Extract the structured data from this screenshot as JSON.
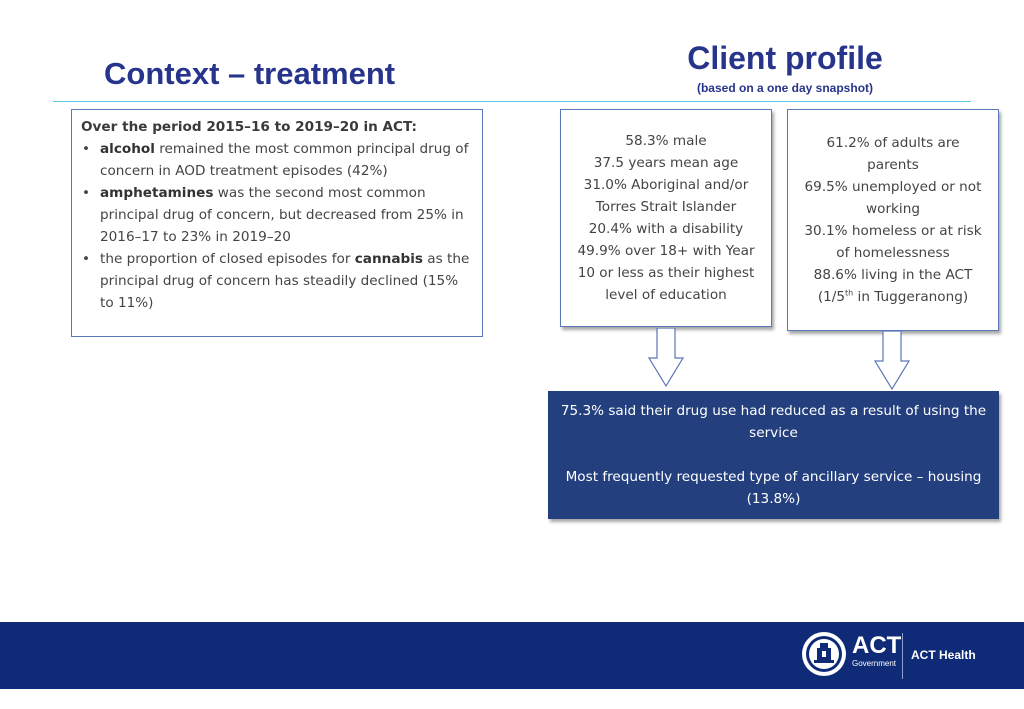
{
  "header": {
    "left_title": "Context – treatment",
    "right_title": "Client profile",
    "right_subtitle": "(based on a one day snapshot)"
  },
  "context_box": {
    "heading": "Over the period 2015–16 to 2019–20 in ACT:",
    "bullets": [
      {
        "bold": "alcohol",
        "text": " remained the most common principal drug of concern in AOD treatment episodes (42%)"
      },
      {
        "bold": "amphetamines",
        "text": " was the second most common principal drug of concern, but decreased from 25% in 2016–17 to 23% in 2019–20"
      },
      {
        "pre": "the proportion of closed episodes for ",
        "bold": "cannabis",
        "text": " as the principal drug of concern has steadily declined (15% to 11%)"
      }
    ]
  },
  "profile_box_a": {
    "lines": [
      "58.3%  male",
      "37.5 years mean age",
      "31.0% Aboriginal and/or",
      "Torres Strait Islander",
      "20.4% with a disability",
      "49.9% over 18+ with Year",
      "10 or less as their highest",
      "level of education"
    ]
  },
  "profile_box_b": {
    "lines": [
      "61.2% of adults are",
      "parents",
      "69.5% unemployed or not",
      "working",
      "30.1% homeless or at risk",
      "of homelessness",
      "88.6% living in the ACT"
    ],
    "last_prefix": "(1/5",
    "last_sup": "th",
    "last_suffix": " in Tuggeranong)"
  },
  "outcome_box": {
    "line1": "75.3% said their drug use had reduced as a result of using the service",
    "line2": "Most frequently requested type of ancillary service – housing (13.8%)"
  },
  "footer": {
    "logo_text": "ACT",
    "logo_sub": "Government",
    "health_text": "ACT Health"
  },
  "colors": {
    "title_blue": "#27348b",
    "rule_cyan": "#5fc6e8",
    "outcome_bg": "#233f7e",
    "footer_bg": "#0f2b78"
  }
}
